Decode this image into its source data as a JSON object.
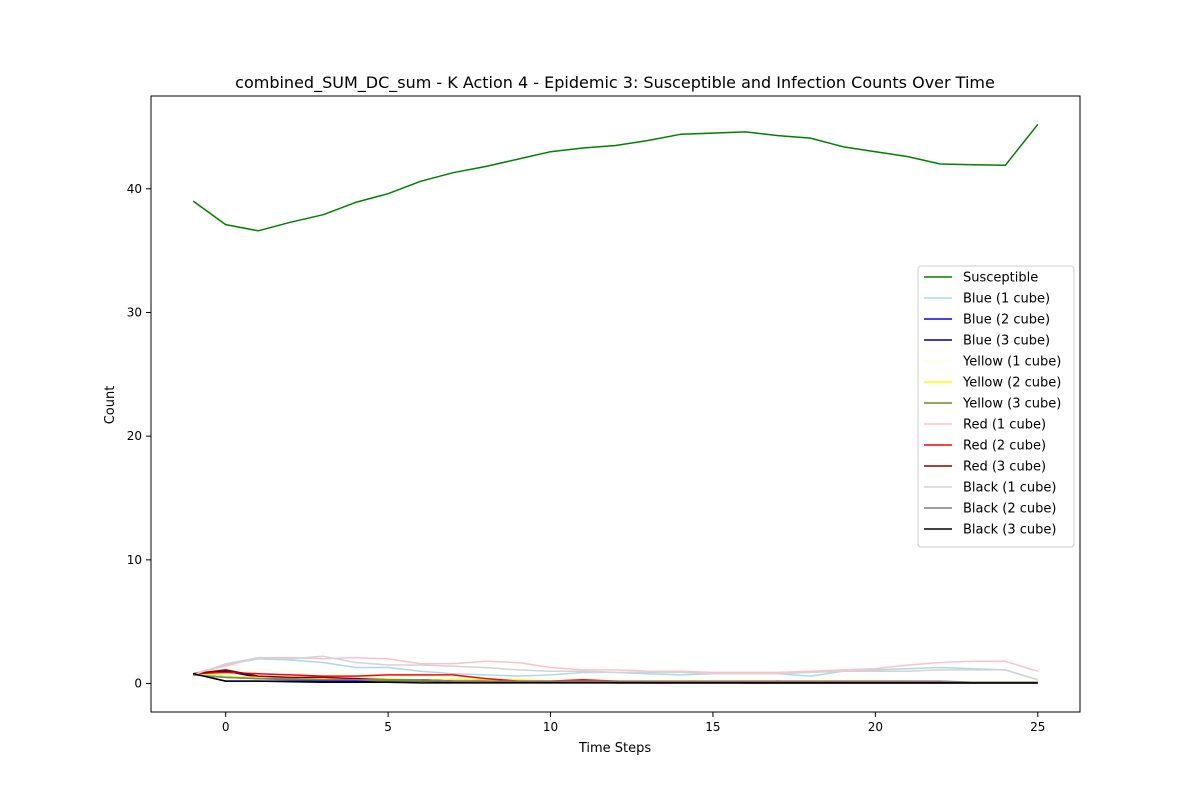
{
  "chart_data": {
    "type": "line",
    "title": "combined_SUM_DC_sum - K Action 4 - Epidemic 3: Susceptible and Infection Counts Over Time",
    "xlabel": "Time Steps",
    "ylabel": "Count",
    "xlim": [
      -2.3,
      26.3
    ],
    "ylim": [
      -2.3,
      47.5
    ],
    "xticks": [
      0,
      5,
      10,
      15,
      20,
      25
    ],
    "yticks": [
      0,
      10,
      20,
      30,
      40
    ],
    "grid": false,
    "legend_position": "center-right",
    "x": [
      -1,
      0,
      1,
      2,
      3,
      4,
      5,
      6,
      7,
      8,
      9,
      10,
      11,
      12,
      13,
      14,
      15,
      16,
      17,
      18,
      19,
      20,
      21,
      22,
      23,
      24,
      25
    ],
    "series": [
      {
        "name": "Susceptible",
        "color": "#008000",
        "values": [
          39.0,
          37.1,
          36.6,
          37.3,
          37.9,
          38.9,
          39.6,
          40.6,
          41.3,
          41.8,
          42.4,
          43.0,
          43.3,
          43.5,
          43.9,
          44.4,
          44.5,
          44.6,
          44.3,
          44.1,
          43.4,
          43.0,
          42.6,
          42.0,
          41.95,
          41.9,
          45.2
        ]
      },
      {
        "name": "Blue (1 cube)",
        "color": "#add8e6",
        "values": [
          0.8,
          1.5,
          2.0,
          1.9,
          1.7,
          1.3,
          1.3,
          1.0,
          0.8,
          0.7,
          0.6,
          0.7,
          0.9,
          0.9,
          0.8,
          0.7,
          0.8,
          0.8,
          0.8,
          0.6,
          1.0,
          1.1,
          1.2,
          1.3,
          1.2,
          1.1,
          0.3
        ]
      },
      {
        "name": "Blue (2 cube)",
        "color": "#0000ff",
        "values": [
          0.8,
          0.2,
          0.2,
          0.2,
          0.2,
          0.2,
          0.2,
          0.2,
          0.1,
          0.1,
          0.1,
          0.1,
          0.1,
          0.1,
          0.1,
          0.1,
          0.1,
          0.05,
          0.05,
          0.05,
          0.05,
          0.05,
          0.05,
          0.05,
          0.05,
          0.05,
          0.05
        ]
      },
      {
        "name": "Blue (3 cube)",
        "color": "#00008b",
        "values": [
          0.8,
          1.0,
          0.5,
          0.4,
          0.3,
          0.3,
          0.2,
          0.2,
          0.1,
          0.1,
          0.1,
          0.1,
          0.1,
          0.05,
          0.05,
          0.05,
          0.05,
          0.05,
          0.05,
          0.05,
          0.05,
          0.05,
          0.05,
          0.05,
          0.05,
          0.05,
          0.05
        ]
      },
      {
        "name": "Yellow (1 cube)",
        "color": "#ffffe0",
        "values": [
          0.7,
          1.2,
          1.1,
          1.0,
          0.9,
          0.8,
          0.7,
          0.6,
          0.5,
          0.5,
          0.4,
          0.4,
          0.4,
          0.3,
          0.3,
          0.3,
          0.3,
          0.3,
          0.3,
          0.3,
          0.3,
          0.3,
          0.2,
          0.2,
          0.2,
          0.2,
          0.2
        ]
      },
      {
        "name": "Yellow (2 cube)",
        "color": "#ffff00",
        "values": [
          0.8,
          0.6,
          0.5,
          0.5,
          0.4,
          0.4,
          0.4,
          0.3,
          0.3,
          0.3,
          0.3,
          0.2,
          0.2,
          0.2,
          0.2,
          0.2,
          0.2,
          0.2,
          0.2,
          0.2,
          0.2,
          0.2,
          0.2,
          0.1,
          0.1,
          0.1,
          0.1
        ]
      },
      {
        "name": "Yellow (3 cube)",
        "color": "#6b8e23",
        "values": [
          0.7,
          0.5,
          0.4,
          0.3,
          0.3,
          0.3,
          0.2,
          0.2,
          0.2,
          0.1,
          0.1,
          0.1,
          0.1,
          0.1,
          0.1,
          0.1,
          0.1,
          0.1,
          0.1,
          0.1,
          0.1,
          0.1,
          0.1,
          0.05,
          0.05,
          0.05,
          0.05
        ]
      },
      {
        "name": "Red (1 cube)",
        "color": "#ffc0cb",
        "values": [
          0.8,
          1.4,
          2.1,
          2.1,
          2.0,
          2.1,
          2.0,
          1.6,
          1.6,
          1.8,
          1.7,
          1.3,
          1.1,
          1.1,
          1.0,
          1.0,
          0.9,
          0.9,
          0.9,
          1.0,
          1.1,
          1.2,
          1.5,
          1.7,
          1.8,
          1.8,
          1.0
        ]
      },
      {
        "name": "Red (2 cube)",
        "color": "#ff0000",
        "values": [
          0.8,
          0.9,
          0.8,
          0.7,
          0.6,
          0.6,
          0.7,
          0.7,
          0.7,
          0.4,
          0.2,
          0.2,
          0.3,
          0.2,
          0.1,
          0.1,
          0.1,
          0.1,
          0.2,
          0.1,
          0.1,
          0.1,
          0.1,
          0.1,
          0.1,
          0.1,
          0.1
        ]
      },
      {
        "name": "Red (3 cube)",
        "color": "#8b0000",
        "values": [
          0.8,
          1.1,
          0.6,
          0.5,
          0.5,
          0.4,
          0.3,
          0.3,
          0.2,
          0.2,
          0.1,
          0.1,
          0.1,
          0.1,
          0.05,
          0.05,
          0.05,
          0.05,
          0.05,
          0.05,
          0.05,
          0.05,
          0.05,
          0.05,
          0.05,
          0.05,
          0.05
        ]
      },
      {
        "name": "Black (1 cube)",
        "color": "#d3d3d3",
        "values": [
          0.7,
          1.6,
          2.1,
          2.0,
          2.2,
          1.7,
          1.5,
          1.5,
          1.4,
          1.3,
          1.1,
          1.0,
          1.0,
          0.9,
          0.9,
          0.9,
          0.8,
          0.8,
          0.8,
          0.9,
          1.0,
          1.0,
          1.0,
          1.1,
          1.1,
          1.1,
          0.3
        ]
      },
      {
        "name": "Black (2 cube)",
        "color": "#808080",
        "values": [
          0.7,
          0.5,
          0.4,
          0.4,
          0.3,
          0.3,
          0.3,
          0.3,
          0.2,
          0.2,
          0.2,
          0.2,
          0.2,
          0.2,
          0.2,
          0.2,
          0.2,
          0.2,
          0.2,
          0.2,
          0.2,
          0.2,
          0.2,
          0.2,
          0.1,
          0.1,
          0.1
        ]
      },
      {
        "name": "Black (3 cube)",
        "color": "#000000",
        "values": [
          0.8,
          0.2,
          0.2,
          0.15,
          0.1,
          0.1,
          0.1,
          0.05,
          0.05,
          0.05,
          0.05,
          0.05,
          0.05,
          0.05,
          0.05,
          0.05,
          0.05,
          0.05,
          0.05,
          0.05,
          0.05,
          0.05,
          0.05,
          0.05,
          0.05,
          0.05,
          0.05
        ]
      }
    ]
  }
}
